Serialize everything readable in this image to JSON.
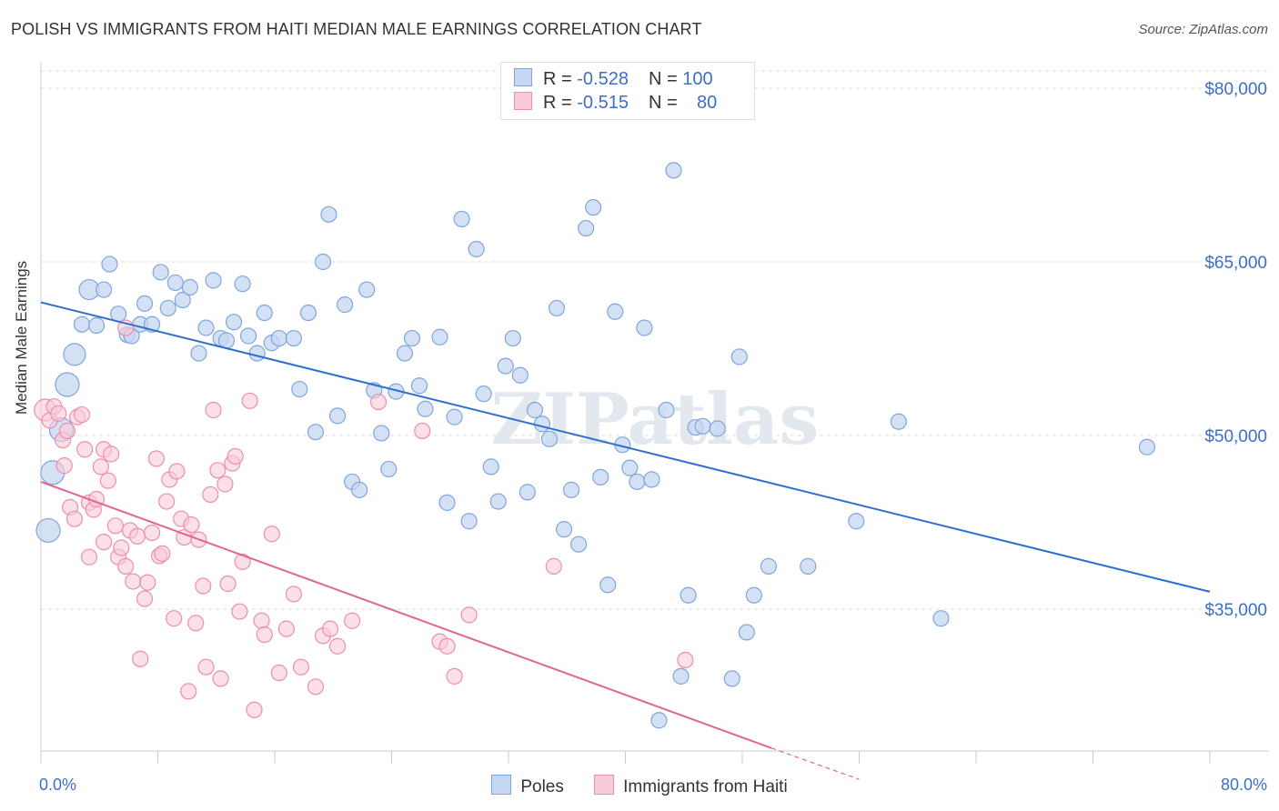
{
  "header": {
    "title": "POLISH VS IMMIGRANTS FROM HAITI MEDIAN MALE EARNINGS CORRELATION CHART",
    "source": "Source: ZipAtlas.com"
  },
  "legend": {
    "rows": [
      {
        "r_label": "R = ",
        "r_value": "-0.528",
        "n_label": "N = ",
        "n_value": "100"
      },
      {
        "r_label": "R = ",
        "r_value": "-0.515",
        "n_label": "N = ",
        "n_value": "80"
      }
    ]
  },
  "watermark": "ZIPatlas",
  "colors": {
    "poles_fill": "#c5d7f2",
    "poles_stroke": "#7fa6dc",
    "poles_line": "#2e6fce",
    "haiti_fill": "#f9cbd8",
    "haiti_stroke": "#ee8eab",
    "haiti_line": "#e06590",
    "tick_label": "#3b6fc9",
    "grid": "#dddddd"
  },
  "chart_data": {
    "type": "scatter",
    "title": "POLISH VS IMMIGRANTS FROM HAITI MEDIAN MALE EARNINGS CORRELATION CHART",
    "xlabel": "",
    "ylabel": "Median Male Earnings",
    "xlim": [
      0,
      80
    ],
    "ylim": [
      20000,
      82000
    ],
    "x_tick_labels": [
      "0.0%",
      "80.0%"
    ],
    "y_ticks": [
      35000,
      50000,
      65000,
      80000
    ],
    "y_tick_labels": [
      "$35,000",
      "$50,000",
      "$65,000",
      "$80,000"
    ],
    "grid": true,
    "legend_position": "top-center",
    "series": [
      {
        "name": "Poles",
        "r": -0.528,
        "n": 100,
        "trend": {
          "x": [
            0,
            80
          ],
          "y": [
            61500,
            36500
          ]
        },
        "points": [
          [
            0.5,
            41800
          ],
          [
            0.8,
            46800
          ],
          [
            1.4,
            50500
          ],
          [
            1.8,
            54400
          ],
          [
            2.3,
            57000
          ],
          [
            2.8,
            59600
          ],
          [
            3.3,
            62600
          ],
          [
            3.8,
            59500
          ],
          [
            4.3,
            62600
          ],
          [
            4.7,
            64800
          ],
          [
            5.3,
            60500
          ],
          [
            5.9,
            58700
          ],
          [
            6.2,
            58600
          ],
          [
            6.8,
            59600
          ],
          [
            7.1,
            61400
          ],
          [
            7.6,
            59600
          ],
          [
            8.2,
            64100
          ],
          [
            8.7,
            61000
          ],
          [
            9.2,
            63200
          ],
          [
            9.7,
            61700
          ],
          [
            10.2,
            62800
          ],
          [
            10.8,
            57100
          ],
          [
            11.3,
            59300
          ],
          [
            11.8,
            63400
          ],
          [
            12.3,
            58400
          ],
          [
            12.7,
            58200
          ],
          [
            13.2,
            59800
          ],
          [
            13.8,
            63100
          ],
          [
            14.2,
            58600
          ],
          [
            14.8,
            57100
          ],
          [
            15.3,
            60600
          ],
          [
            15.8,
            58000
          ],
          [
            16.3,
            58400
          ],
          [
            17.3,
            58400
          ],
          [
            17.7,
            54000
          ],
          [
            18.3,
            60600
          ],
          [
            18.8,
            50300
          ],
          [
            19.3,
            65000
          ],
          [
            19.7,
            69100
          ],
          [
            20.3,
            51700
          ],
          [
            20.8,
            61300
          ],
          [
            21.3,
            46000
          ],
          [
            21.8,
            45300
          ],
          [
            22.3,
            62600
          ],
          [
            22.8,
            53900
          ],
          [
            23.3,
            50200
          ],
          [
            23.8,
            47100
          ],
          [
            24.3,
            53800
          ],
          [
            24.9,
            57100
          ],
          [
            25.4,
            58400
          ],
          [
            25.9,
            54300
          ],
          [
            26.3,
            52300
          ],
          [
            27.3,
            58500
          ],
          [
            27.8,
            44200
          ],
          [
            28.3,
            51600
          ],
          [
            28.8,
            68700
          ],
          [
            29.3,
            42600
          ],
          [
            29.8,
            66100
          ],
          [
            30.3,
            53600
          ],
          [
            30.8,
            47300
          ],
          [
            31.3,
            44300
          ],
          [
            31.8,
            56000
          ],
          [
            32.3,
            58400
          ],
          [
            32.8,
            55200
          ],
          [
            33.3,
            45100
          ],
          [
            33.8,
            52200
          ],
          [
            34.3,
            51000
          ],
          [
            34.8,
            49700
          ],
          [
            35.3,
            61000
          ],
          [
            35.8,
            41900
          ],
          [
            36.3,
            45300
          ],
          [
            36.8,
            40600
          ],
          [
            37.3,
            67900
          ],
          [
            37.8,
            69700
          ],
          [
            38.3,
            46400
          ],
          [
            38.8,
            37100
          ],
          [
            39.3,
            60700
          ],
          [
            39.8,
            49200
          ],
          [
            40.3,
            47200
          ],
          [
            40.8,
            46000
          ],
          [
            41.3,
            59300
          ],
          [
            41.8,
            46200
          ],
          [
            42.3,
            25400
          ],
          [
            42.8,
            52200
          ],
          [
            43.3,
            72900
          ],
          [
            43.8,
            29200
          ],
          [
            44.3,
            36200
          ],
          [
            44.8,
            50700
          ],
          [
            45.3,
            50800
          ],
          [
            46.3,
            50600
          ],
          [
            47.3,
            29000
          ],
          [
            47.8,
            56800
          ],
          [
            48.3,
            33000
          ],
          [
            48.8,
            36200
          ],
          [
            49.8,
            38700
          ],
          [
            52.5,
            38700
          ],
          [
            55.8,
            42600
          ],
          [
            58.7,
            51200
          ],
          [
            61.6,
            34200
          ],
          [
            75.7,
            49000
          ]
        ]
      },
      {
        "name": "Immigrants from Haiti",
        "r": -0.515,
        "n": 80,
        "trend": {
          "x": [
            0,
            50
          ],
          "y": [
            46000,
            23000
          ]
        },
        "trend_dashed": {
          "x": [
            50,
            56
          ],
          "y": [
            23000,
            20300
          ]
        },
        "points": [
          [
            0.3,
            52200
          ],
          [
            0.6,
            51300
          ],
          [
            0.9,
            52500
          ],
          [
            1.2,
            51900
          ],
          [
            1.5,
            49600
          ],
          [
            1.6,
            47400
          ],
          [
            1.8,
            50400
          ],
          [
            2.0,
            43800
          ],
          [
            2.3,
            42800
          ],
          [
            2.5,
            51600
          ],
          [
            2.8,
            51800
          ],
          [
            3.0,
            48800
          ],
          [
            3.3,
            44200
          ],
          [
            3.3,
            39500
          ],
          [
            3.6,
            43600
          ],
          [
            3.8,
            44500
          ],
          [
            4.1,
            47300
          ],
          [
            4.3,
            48800
          ],
          [
            4.3,
            40800
          ],
          [
            4.6,
            46100
          ],
          [
            4.8,
            48400
          ],
          [
            5.1,
            42200
          ],
          [
            5.3,
            39500
          ],
          [
            5.5,
            40300
          ],
          [
            5.8,
            59300
          ],
          [
            5.8,
            38700
          ],
          [
            6.1,
            41800
          ],
          [
            6.3,
            37400
          ],
          [
            6.6,
            41300
          ],
          [
            6.8,
            30700
          ],
          [
            7.1,
            35900
          ],
          [
            7.3,
            37300
          ],
          [
            7.6,
            41600
          ],
          [
            7.9,
            48000
          ],
          [
            8.1,
            39600
          ],
          [
            8.3,
            39800
          ],
          [
            8.6,
            44300
          ],
          [
            8.8,
            46200
          ],
          [
            9.1,
            34200
          ],
          [
            9.3,
            46900
          ],
          [
            9.6,
            42800
          ],
          [
            9.8,
            41200
          ],
          [
            10.1,
            27900
          ],
          [
            10.3,
            42300
          ],
          [
            10.6,
            33800
          ],
          [
            10.8,
            41000
          ],
          [
            11.1,
            37000
          ],
          [
            11.3,
            30000
          ],
          [
            11.6,
            44900
          ],
          [
            11.8,
            52200
          ],
          [
            12.1,
            47000
          ],
          [
            12.3,
            29000
          ],
          [
            12.6,
            45800
          ],
          [
            12.8,
            37200
          ],
          [
            13.1,
            47600
          ],
          [
            13.3,
            48200
          ],
          [
            13.6,
            34800
          ],
          [
            13.8,
            39100
          ],
          [
            14.3,
            53000
          ],
          [
            14.6,
            26300
          ],
          [
            15.1,
            34000
          ],
          [
            15.3,
            32800
          ],
          [
            15.8,
            41500
          ],
          [
            16.3,
            29500
          ],
          [
            16.8,
            33300
          ],
          [
            17.3,
            36300
          ],
          [
            17.8,
            30000
          ],
          [
            18.8,
            28300
          ],
          [
            19.3,
            32700
          ],
          [
            19.8,
            33300
          ],
          [
            20.3,
            31800
          ],
          [
            21.3,
            34000
          ],
          [
            23.1,
            52900
          ],
          [
            26.1,
            50400
          ],
          [
            27.3,
            32200
          ],
          [
            27.8,
            31800
          ],
          [
            28.3,
            29200
          ],
          [
            29.3,
            34500
          ],
          [
            35.1,
            38700
          ],
          [
            44.1,
            30600
          ]
        ]
      }
    ]
  },
  "bottom_legend": [
    {
      "label": "Poles"
    },
    {
      "label": "Immigrants from Haiti"
    }
  ]
}
